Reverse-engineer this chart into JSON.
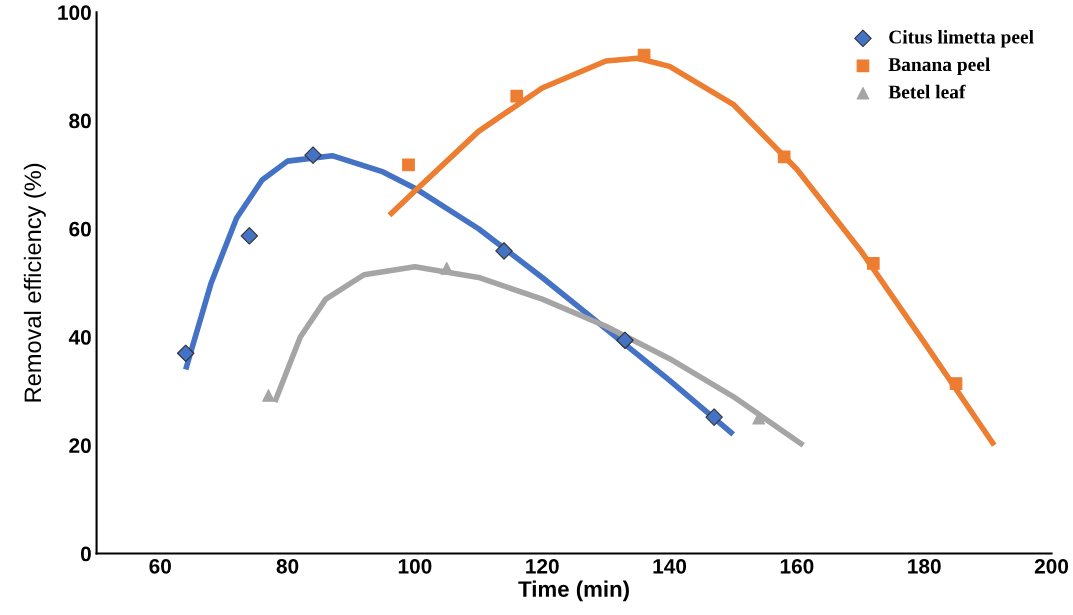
{
  "chart_data": {
    "type": "scatter",
    "xlabel": "Time (min)",
    "ylabel": "Removal efficiency (%)",
    "xlim": [
      50,
      200
    ],
    "xticks": [
      60,
      80,
      100,
      120,
      140,
      160,
      180,
      200
    ],
    "ylim": [
      0,
      100
    ],
    "yticks": [
      0,
      20,
      40,
      60,
      80,
      100
    ],
    "grid": false,
    "legend": "top right",
    "series": [
      {
        "name": "Citus limetta peel",
        "color": "#4472c4",
        "marker": "diamond",
        "x": [
          64,
          74,
          84,
          114,
          133,
          147
        ],
        "values": [
          37,
          58.7,
          73.6,
          55.9,
          39.4,
          25.2
        ]
      },
      {
        "name": "Banana peel",
        "color": "#ed7d31",
        "marker": "square",
        "x": [
          99,
          116,
          136,
          158,
          172,
          185
        ],
        "values": [
          71.8,
          84.5,
          92.1,
          73.3,
          53.6,
          31.4
        ]
      },
      {
        "name": "Betel leaf",
        "color": "#a5a5a5",
        "marker": "triangle",
        "x": [
          77,
          105,
          154
        ],
        "values": [
          29.2,
          52.7,
          25
        ]
      },
      {
        "type": "line",
        "color": "#4472c4",
        "marker": "none",
        "x": [
          64,
          68,
          72,
          76,
          80,
          87,
          95,
          100,
          110,
          120,
          130,
          140,
          150
        ],
        "values": [
          34,
          50,
          62,
          69,
          72.5,
          73.5,
          70.5,
          67.5,
          60,
          51,
          41.5,
          32,
          22
        ]
      },
      {
        "type": "line",
        "color": "#ed7d31",
        "marker": "none",
        "x": [
          96,
          100,
          110,
          120,
          130,
          135,
          140,
          150,
          160,
          170,
          180,
          191
        ],
        "values": [
          62.5,
          67,
          78,
          86,
          91,
          91.5,
          90,
          83,
          71,
          56,
          39,
          20
        ]
      },
      {
        "type": "line",
        "color": "#a5a5a5",
        "marker": "none",
        "x": [
          78,
          82,
          86,
          92,
          100,
          110,
          120,
          130,
          140,
          150,
          161
        ],
        "values": [
          28,
          40,
          47,
          51.5,
          53,
          51,
          47,
          42,
          36,
          29,
          20
        ]
      }
    ]
  }
}
